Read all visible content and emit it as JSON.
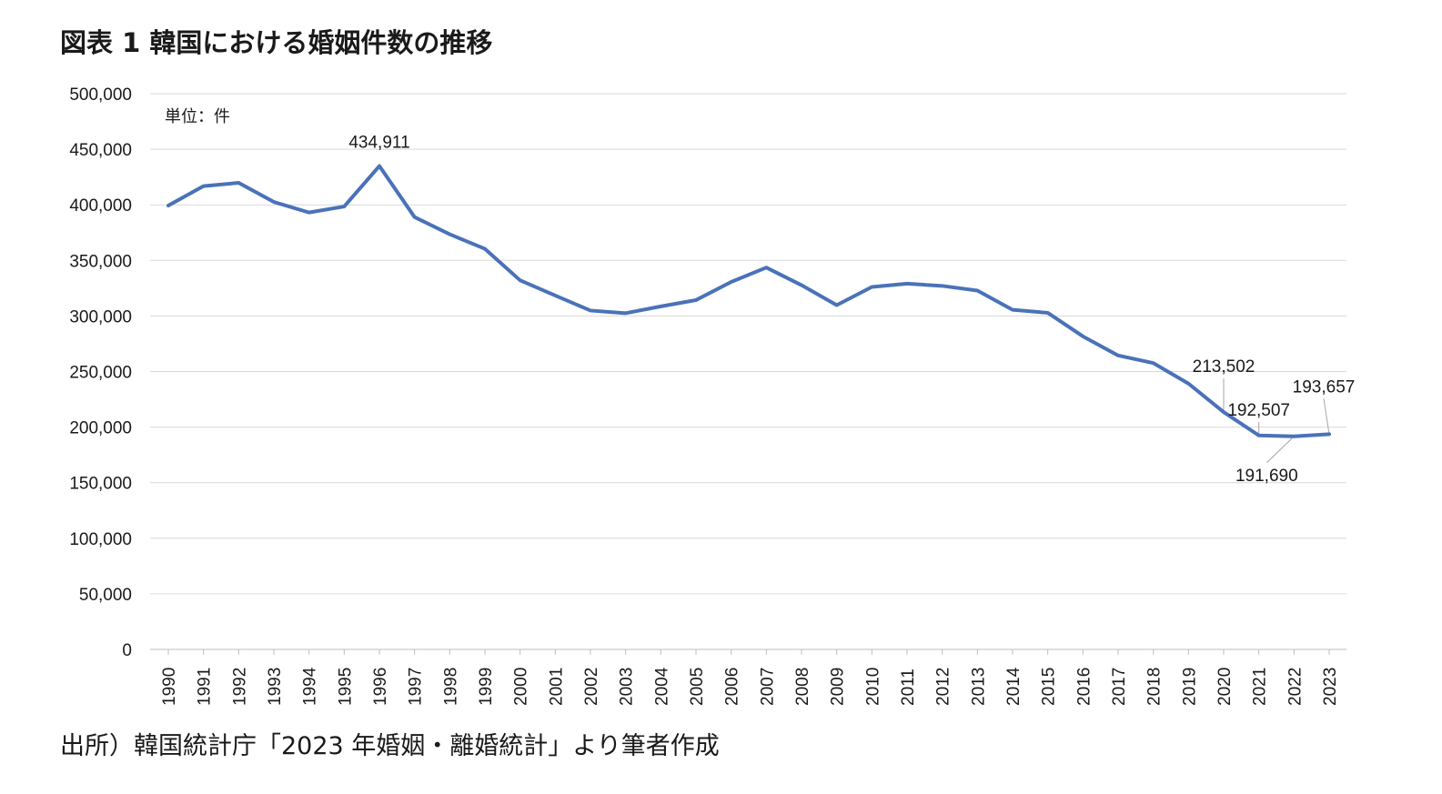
{
  "title": "図表 1 韓国における婚姻件数の推移",
  "source": "出所）韓国統計庁「2023 年婚姻・離婚統計」より筆者作成",
  "chart_data": {
    "type": "line",
    "unit_label": "単位：件",
    "x": [
      "1990",
      "1991",
      "1992",
      "1993",
      "1994",
      "1995",
      "1996",
      "1997",
      "1998",
      "1999",
      "2000",
      "2001",
      "2002",
      "2003",
      "2004",
      "2005",
      "2006",
      "2007",
      "2008",
      "2009",
      "2010",
      "2011",
      "2012",
      "2013",
      "2014",
      "2015",
      "2016",
      "2017",
      "2018",
      "2019",
      "2020",
      "2021",
      "2022",
      "2023"
    ],
    "series": [
      {
        "values": [
          399312,
          416872,
          419774,
          402593,
          393121,
          398484,
          434911,
          388960,
          373500,
          360407,
          332090,
          318407,
          304877,
          302503,
          308598,
          314304,
          330634,
          343559,
          327715,
          309759,
          326104,
          329087,
          327073,
          322807,
          305507,
          302828,
          281635,
          264455,
          257622,
          239159,
          213502,
          192507,
          191690,
          193657
        ],
        "color": "#4a72b8"
      }
    ],
    "yticks": [
      "0",
      "50,000",
      "100,000",
      "150,000",
      "200,000",
      "250,000",
      "300,000",
      "350,000",
      "400,000",
      "450,000",
      "500,000"
    ],
    "ylim": [
      0,
      500000
    ],
    "grid": true,
    "data_labels": [
      {
        "year": "1996",
        "text": "434,911"
      },
      {
        "year": "2020",
        "text": "213,502"
      },
      {
        "year": "2021",
        "text": "192,507"
      },
      {
        "year": "2022",
        "text": "191,690"
      },
      {
        "year": "2023",
        "text": "193,657"
      }
    ]
  }
}
